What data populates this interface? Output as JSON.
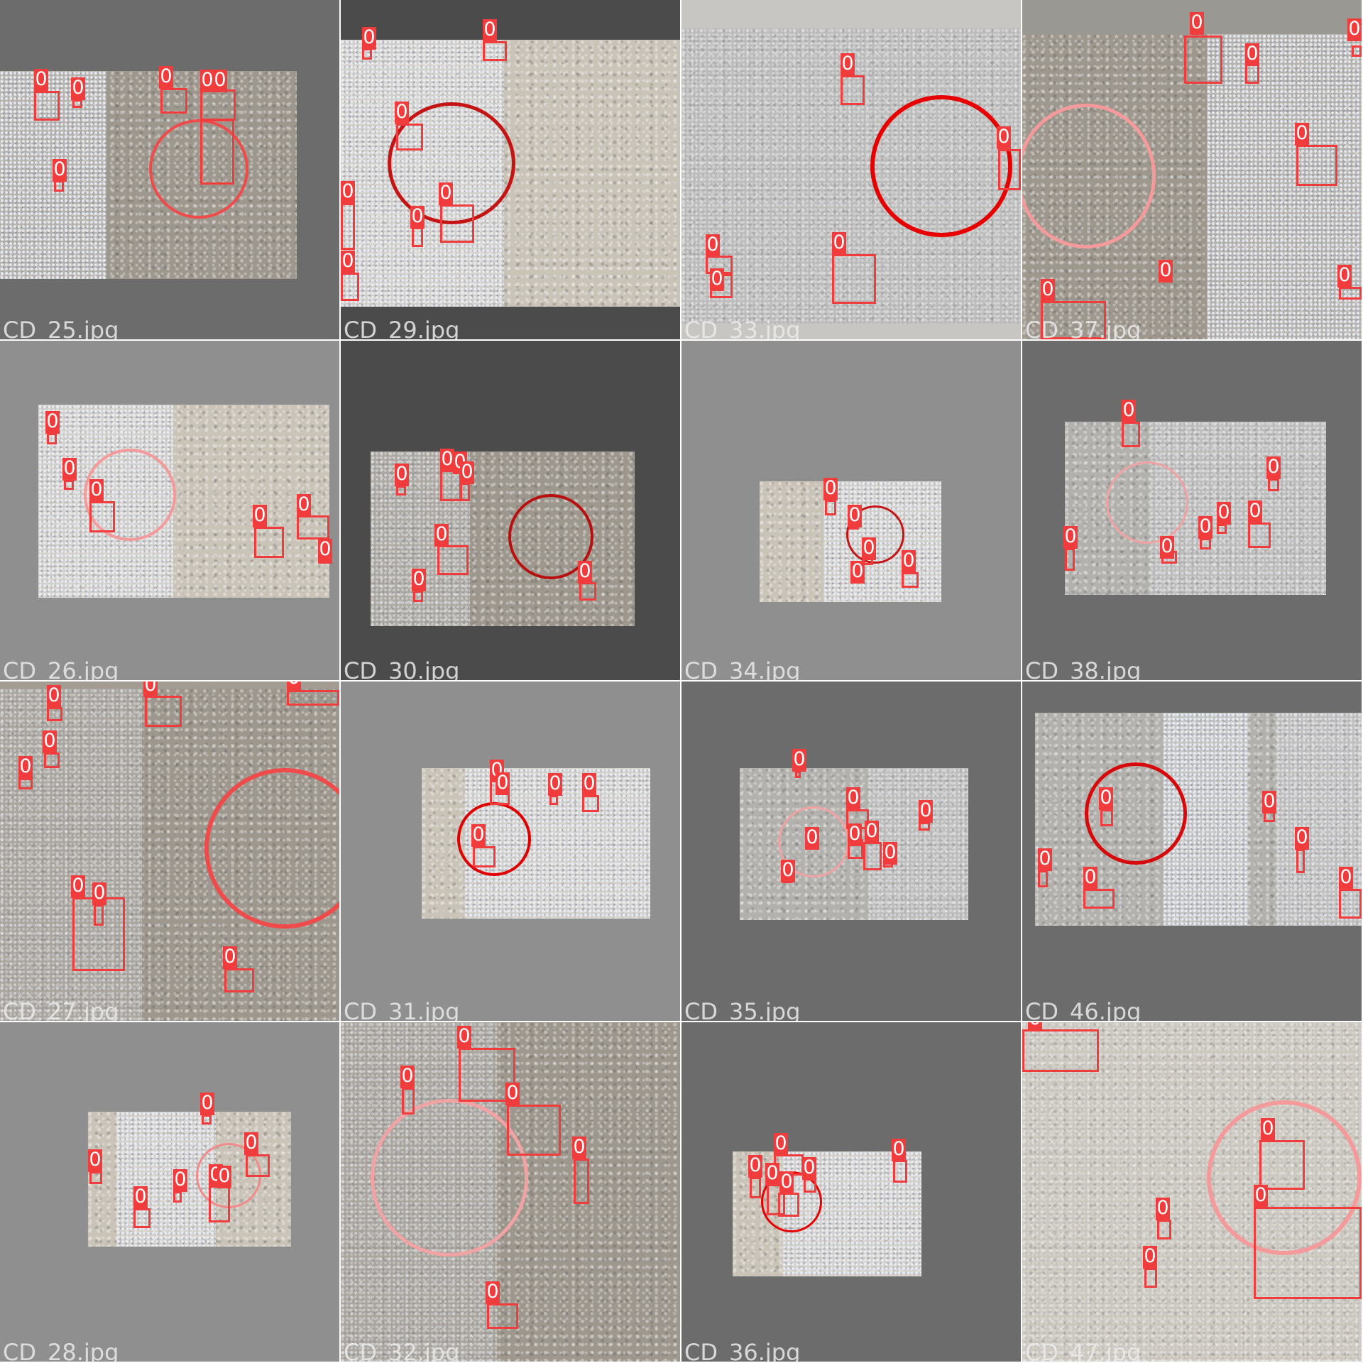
{
  "label_text": "0",
  "colors": {
    "box": "#f03c3c",
    "label_bg": "#f03c3c",
    "label_fg": "#ffffff"
  },
  "tiles": [
    {
      "file": "CD_25.jpg",
      "pad": "#6c6c6c",
      "tone": "mid"
    },
    {
      "file": "CD_29.jpg",
      "pad": "#4b4b4b",
      "tone": "light"
    },
    {
      "file": "CD_33.jpg",
      "pad": "#c8c6c2",
      "tone": "cool"
    },
    {
      "file": "CD_37.jpg",
      "pad": "#9a9893",
      "tone": "mid"
    },
    {
      "file": "CD_26.jpg",
      "pad": "#8f8f8f",
      "tone": "light"
    },
    {
      "file": "CD_30.jpg",
      "pad": "#4b4b4b",
      "tone": "mid"
    },
    {
      "file": "CD_34.jpg",
      "pad": "#8f8f8f",
      "tone": "light"
    },
    {
      "file": "CD_38.jpg",
      "pad": "#6c6c6c",
      "tone": "cool"
    },
    {
      "file": "CD_27.jpg",
      "pad": "#a29c93",
      "tone": "mid"
    },
    {
      "file": "CD_31.jpg",
      "pad": "#8f8f8f",
      "tone": "light"
    },
    {
      "file": "CD_35.jpg",
      "pad": "#6c6c6c",
      "tone": "cool"
    },
    {
      "file": "CD_46.jpg",
      "pad": "#6c6c6c",
      "tone": "cool"
    },
    {
      "file": "CD_28.jpg",
      "pad": "#8f8f8f",
      "tone": "light"
    },
    {
      "file": "CD_32.jpg",
      "pad": "#9a9893",
      "tone": "mid"
    },
    {
      "file": "CD_36.jpg",
      "pad": "#6c6c6c",
      "tone": "light"
    },
    {
      "file": "CD_47.jpg",
      "pad": "#c9c5bd",
      "tone": "light"
    }
  ]
}
